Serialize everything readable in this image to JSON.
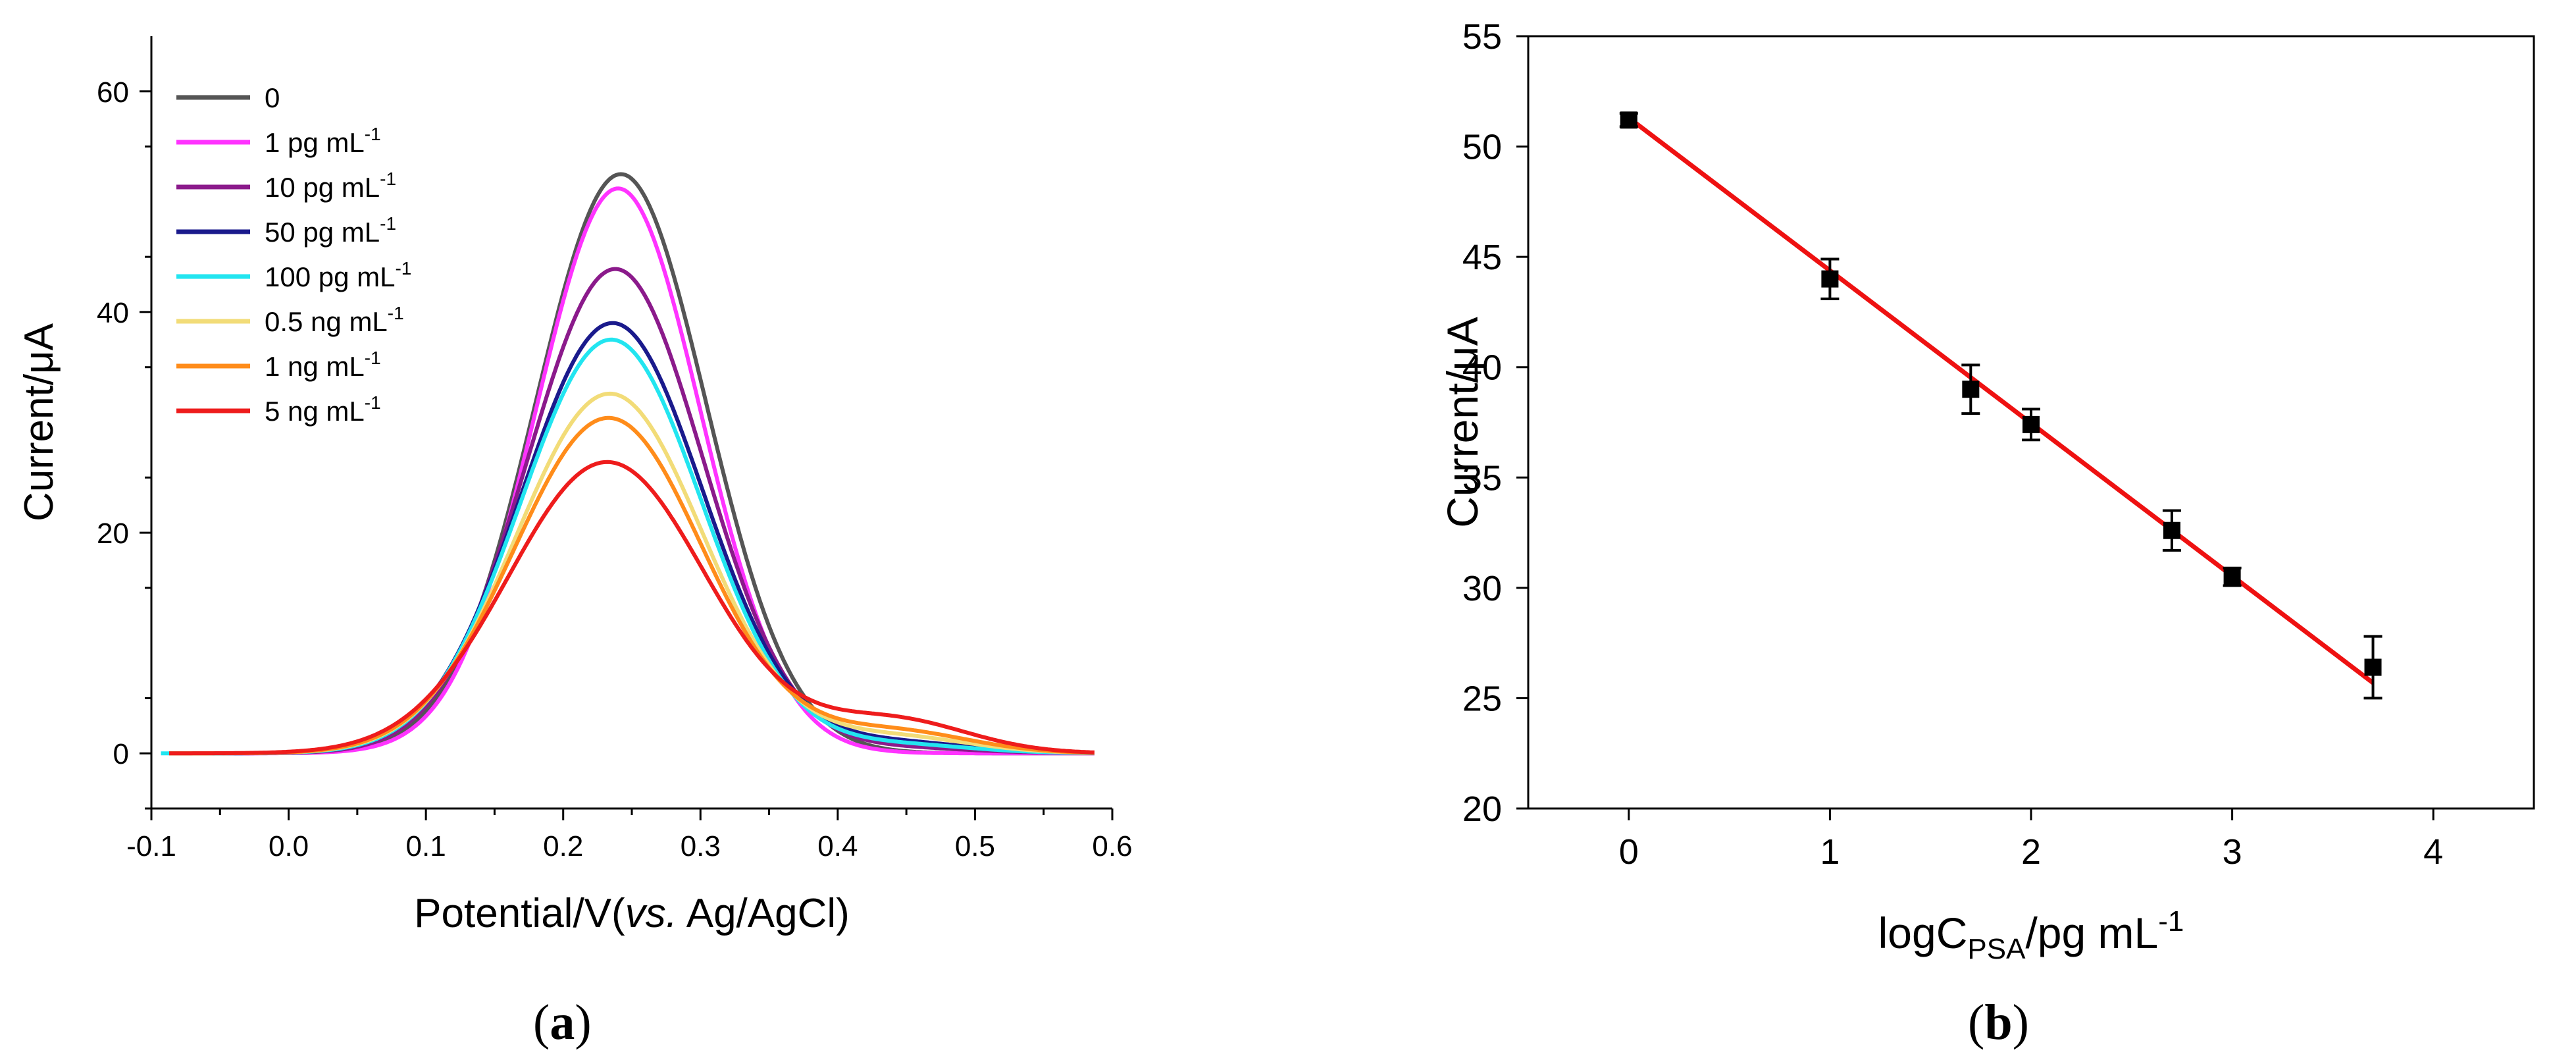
{
  "chart_data": [
    {
      "type": "line",
      "panel_label": "a",
      "ylabel": "Current/μA",
      "xlabel_parts": [
        "Potential/V(",
        "vs.",
        " Ag/AgCl)"
      ],
      "xlim": [
        -0.1,
        0.6
      ],
      "ylim": [
        -5,
        65
      ],
      "x_ticks": [
        -0.1,
        0.0,
        0.1,
        0.2,
        0.3,
        0.4,
        0.5,
        0.6
      ],
      "x_tick_labels": [
        "-0.1",
        "0.0",
        "0.1",
        "0.2",
        "0.3",
        "0.4",
        "0.5",
        "0.6"
      ],
      "y_ticks": [
        0,
        20,
        40,
        60
      ],
      "y_tick_labels": [
        "0",
        "20",
        "40",
        "60"
      ],
      "legend_position": "top-left",
      "series": [
        {
          "name": "0",
          "label_parts": [
            "0"
          ],
          "color": "#555555",
          "peak_x": 0.242,
          "peak_y": 52.5,
          "width": 0.062,
          "tail": 0.0,
          "x_start": -0.087
        },
        {
          "name": "1 pg mL-1",
          "label_parts": [
            "1 pg mL",
            "-1"
          ],
          "color": "#ff33ff",
          "peak_x": 0.24,
          "peak_y": 51.2,
          "width": 0.06,
          "tail": 0.0,
          "x_start": -0.087
        },
        {
          "name": "10 pg mL-1",
          "label_parts": [
            "10 pg mL",
            "-1"
          ],
          "color": "#8b1a8b",
          "peak_x": 0.238,
          "peak_y": 43.9,
          "width": 0.064,
          "tail": 0.5,
          "x_start": -0.087
        },
        {
          "name": "50 pg mL-1",
          "label_parts": [
            "50 pg mL",
            "-1"
          ],
          "color": "#1a1a8c",
          "peak_x": 0.236,
          "peak_y": 39.0,
          "width": 0.066,
          "tail": 1.0,
          "x_start": -0.087
        },
        {
          "name": "100 pg mL-1",
          "label_parts": [
            "100 pg mL",
            "-1"
          ],
          "color": "#22e5f0",
          "peak_x": 0.235,
          "peak_y": 37.5,
          "width": 0.066,
          "tail": 0.8,
          "x_start": -0.093
        },
        {
          "name": "0.5 ng mL-1",
          "label_parts": [
            "0.5 ng mL",
            "-1"
          ],
          "color": "#f2dc78",
          "peak_x": 0.234,
          "peak_y": 32.6,
          "width": 0.068,
          "tail": 1.5,
          "x_start": -0.087
        },
        {
          "name": "1 ng mL-1",
          "label_parts": [
            "1 ng mL",
            "-1"
          ],
          "color": "#ff8c1a",
          "peak_x": 0.233,
          "peak_y": 30.4,
          "width": 0.069,
          "tail": 2.0,
          "x_start": -0.087
        },
        {
          "name": "5 ng mL-1",
          "label_parts": [
            "5 ng mL",
            "-1"
          ],
          "color": "#ee1c1c",
          "peak_x": 0.232,
          "peak_y": 26.4,
          "width": 0.072,
          "tail": 3.0,
          "x_start": -0.087
        }
      ]
    },
    {
      "type": "scatter",
      "panel_label": "b",
      "ylabel": "Current/μA",
      "xlabel_parts": [
        "logC",
        "PSA",
        "/pg mL",
        "-1"
      ],
      "xlim": [
        -0.5,
        4.5
      ],
      "ylim": [
        20,
        55
      ],
      "x_ticks": [
        0,
        1,
        2,
        3,
        4
      ],
      "x_tick_labels": [
        "0",
        "1",
        "2",
        "3",
        "4"
      ],
      "y_ticks": [
        20,
        25,
        30,
        35,
        40,
        45,
        50,
        55
      ],
      "y_tick_labels": [
        "20",
        "25",
        "30",
        "35",
        "40",
        "45",
        "50",
        "55"
      ],
      "points": [
        {
          "x": 0,
          "y": 51.2,
          "err": 0.3
        },
        {
          "x": 1,
          "y": 44.0,
          "err": 0.9
        },
        {
          "x": 1.7,
          "y": 39.0,
          "err": 1.1
        },
        {
          "x": 2,
          "y": 37.4,
          "err": 0.7
        },
        {
          "x": 2.7,
          "y": 32.6,
          "err": 0.9
        },
        {
          "x": 3,
          "y": 30.5,
          "err": 0.4
        },
        {
          "x": 3.7,
          "y": 26.4,
          "err": 1.4
        }
      ],
      "fit": {
        "x_range": [
          0,
          3.7
        ],
        "slope": -6.92,
        "intercept": 51.3,
        "color": "#ee1111"
      }
    }
  ],
  "captions": {
    "a": "a",
    "b": "b"
  }
}
